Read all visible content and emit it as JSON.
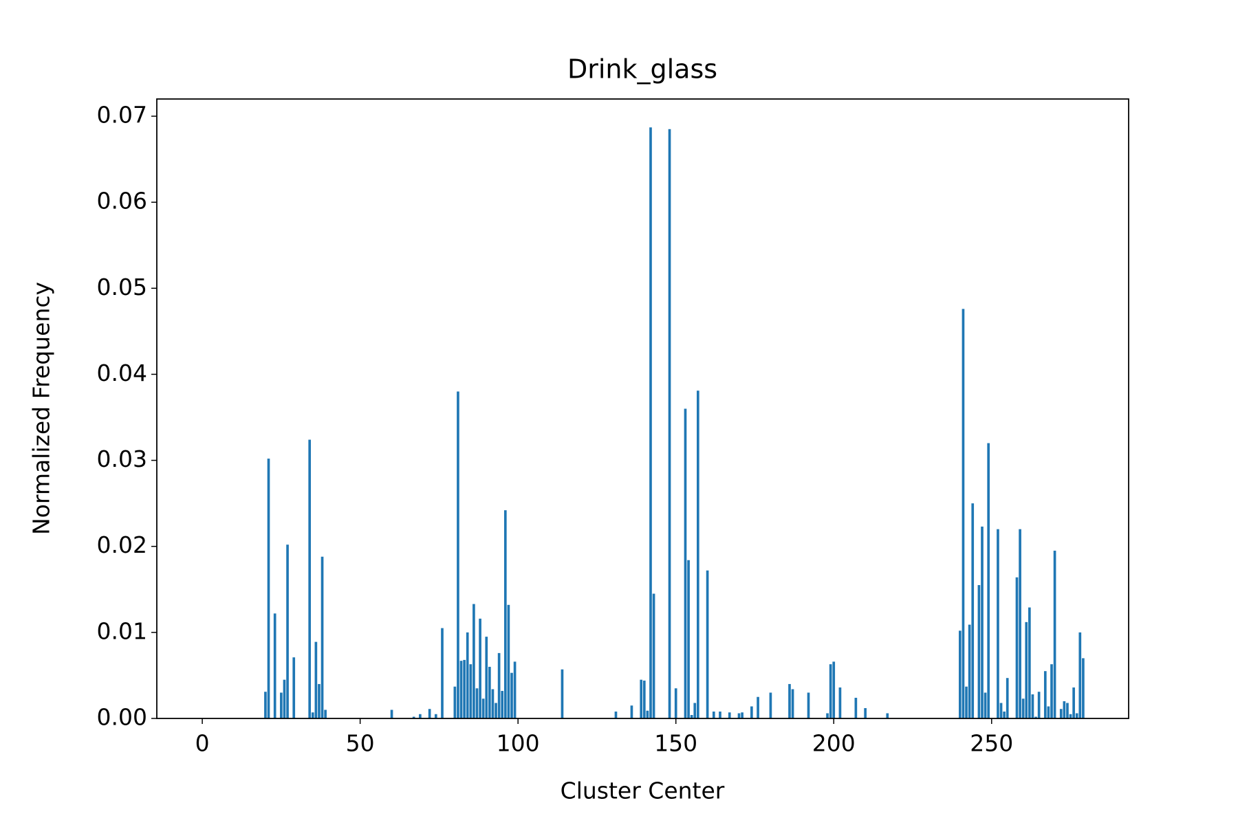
{
  "chart_data": {
    "type": "bar",
    "title": "Drink_glass",
    "x_label": "Cluster Center",
    "y_label": "Normalized Frequency",
    "color": "#1f77b4",
    "bar_width": 0.8,
    "x": [
      20,
      21,
      23,
      25,
      26,
      27,
      29,
      34,
      35,
      36,
      37,
      38,
      39,
      60,
      67,
      69,
      72,
      74,
      76,
      80,
      81,
      82,
      83,
      84,
      85,
      86,
      87,
      88,
      89,
      90,
      91,
      92,
      93,
      94,
      95,
      96,
      97,
      98,
      99,
      114,
      131,
      136,
      139,
      140,
      141,
      142,
      143,
      148,
      150,
      153,
      154,
      155,
      156,
      157,
      160,
      162,
      164,
      167,
      170,
      171,
      174,
      176,
      180,
      186,
      187,
      192,
      198,
      199,
      200,
      202,
      207,
      210,
      217,
      240,
      241,
      242,
      243,
      244,
      246,
      247,
      248,
      249,
      252,
      253,
      254,
      255,
      258,
      259,
      260,
      261,
      262,
      263,
      264,
      265,
      267,
      268,
      269,
      270,
      272,
      273,
      274,
      275,
      276,
      277,
      278,
      279
    ],
    "values": [
      0.0031,
      0.0302,
      0.0122,
      0.003,
      0.0045,
      0.0202,
      0.0071,
      0.0324,
      0.0007,
      0.0089,
      0.004,
      0.0188,
      0.001,
      0.001,
      0.0002,
      0.0005,
      0.0011,
      0.0005,
      0.0105,
      0.0037,
      0.038,
      0.0067,
      0.0068,
      0.01,
      0.0063,
      0.0133,
      0.0035,
      0.0116,
      0.0023,
      0.0095,
      0.006,
      0.0034,
      0.0018,
      0.0076,
      0.0032,
      0.0242,
      0.0132,
      0.0053,
      0.0066,
      0.0057,
      0.0008,
      0.0015,
      0.0045,
      0.0044,
      0.0009,
      0.0687,
      0.0145,
      0.0685,
      0.0035,
      0.036,
      0.0184,
      0.0004,
      0.0018,
      0.0381,
      0.0172,
      0.0008,
      0.0008,
      0.0007,
      0.0006,
      0.0007,
      0.0014,
      0.0025,
      0.003,
      0.004,
      0.0034,
      0.003,
      0.0006,
      0.0063,
      0.0066,
      0.0036,
      0.0024,
      0.0012,
      0.0006,
      0.0102,
      0.0476,
      0.0037,
      0.0109,
      0.025,
      0.0155,
      0.0223,
      0.003,
      0.032,
      0.022,
      0.0018,
      0.0008,
      0.0047,
      0.0164,
      0.022,
      0.0023,
      0.0112,
      0.0129,
      0.0028,
      0.0002,
      0.0031,
      0.0055,
      0.0014,
      0.0063,
      0.0195,
      0.0011,
      0.002,
      0.0018,
      0.0005,
      0.0036,
      0.0006,
      0.01,
      0.007
    ],
    "xlim": [
      -14.4,
      293.4
    ],
    "xticks": [
      0,
      50,
      100,
      150,
      200,
      250
    ],
    "ylim": [
      0,
      0.072
    ],
    "yticks": [
      {
        "value": 0,
        "label": "0.00"
      },
      0.01,
      0.02,
      0.03,
      0.04,
      0.05,
      0.06,
      0.07
    ]
  }
}
